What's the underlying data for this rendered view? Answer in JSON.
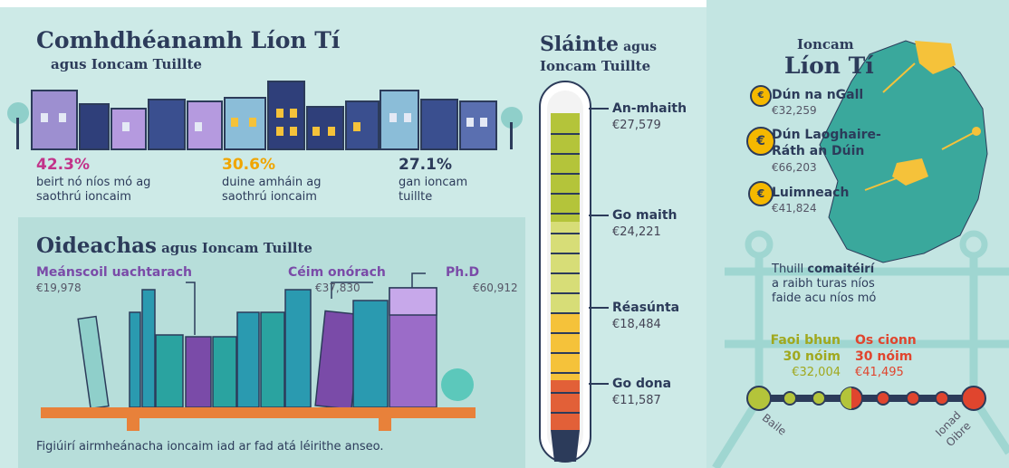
{
  "household": {
    "title": "Comhdhéanamh Líon Tí",
    "subtitle": "agus Ioncam Tuillte",
    "stats": [
      {
        "value": "42.3%",
        "label": "beirt nó níos mó ag saothrú ioncaim"
      },
      {
        "value": "30.6%",
        "label": "duine amháin ag saothrú ioncaim"
      },
      {
        "value": "27.1%",
        "label": "gan ioncam tuillte"
      }
    ]
  },
  "education": {
    "title": "Oideachas",
    "title_suffix": "agus Ioncam Tuillte",
    "levels": [
      {
        "name": "Meánscoil uachtarach",
        "income": "€19,978"
      },
      {
        "name": "Céim onórach",
        "income": "€37,830"
      },
      {
        "name": "Ph.D",
        "income": "€60,912"
      }
    ]
  },
  "footnote": "Figiúirí airmheánacha ioncaim iad ar fad atá léirithe anseo.",
  "health": {
    "title": "Sláinte",
    "title_suffix": "agus",
    "subtitle": "Ioncam Tuillte",
    "levels": [
      {
        "name": "An-mhaith",
        "income": "€27,579"
      },
      {
        "name": "Go maith",
        "income": "€24,221"
      },
      {
        "name": "Réasúnta",
        "income": "€18,484"
      },
      {
        "name": "Go dona",
        "income": "€11,587"
      }
    ]
  },
  "location": {
    "title_small": "Ioncam",
    "title": "Líon Tí",
    "areas": [
      {
        "name": "Dún na nGall",
        "income": "€32,259"
      },
      {
        "name": "Dún Laoghaire-Ráth an Dúin",
        "income": "€66,203"
      },
      {
        "name": "Luimneach",
        "income": "€41,824"
      }
    ]
  },
  "commute": {
    "text_before": "Thuill",
    "text_bold": "comaitéirí",
    "text_after": "a raibh turas níos faide acu níos mó",
    "groups": [
      {
        "label": [
          "Faoi bhun",
          "30 nóim"
        ],
        "income": "€32,004"
      },
      {
        "label": [
          "Os cionn",
          "30 nóim"
        ],
        "income": "€41,495"
      }
    ],
    "start": "Baile",
    "end": "Ionad Oibre"
  }
}
